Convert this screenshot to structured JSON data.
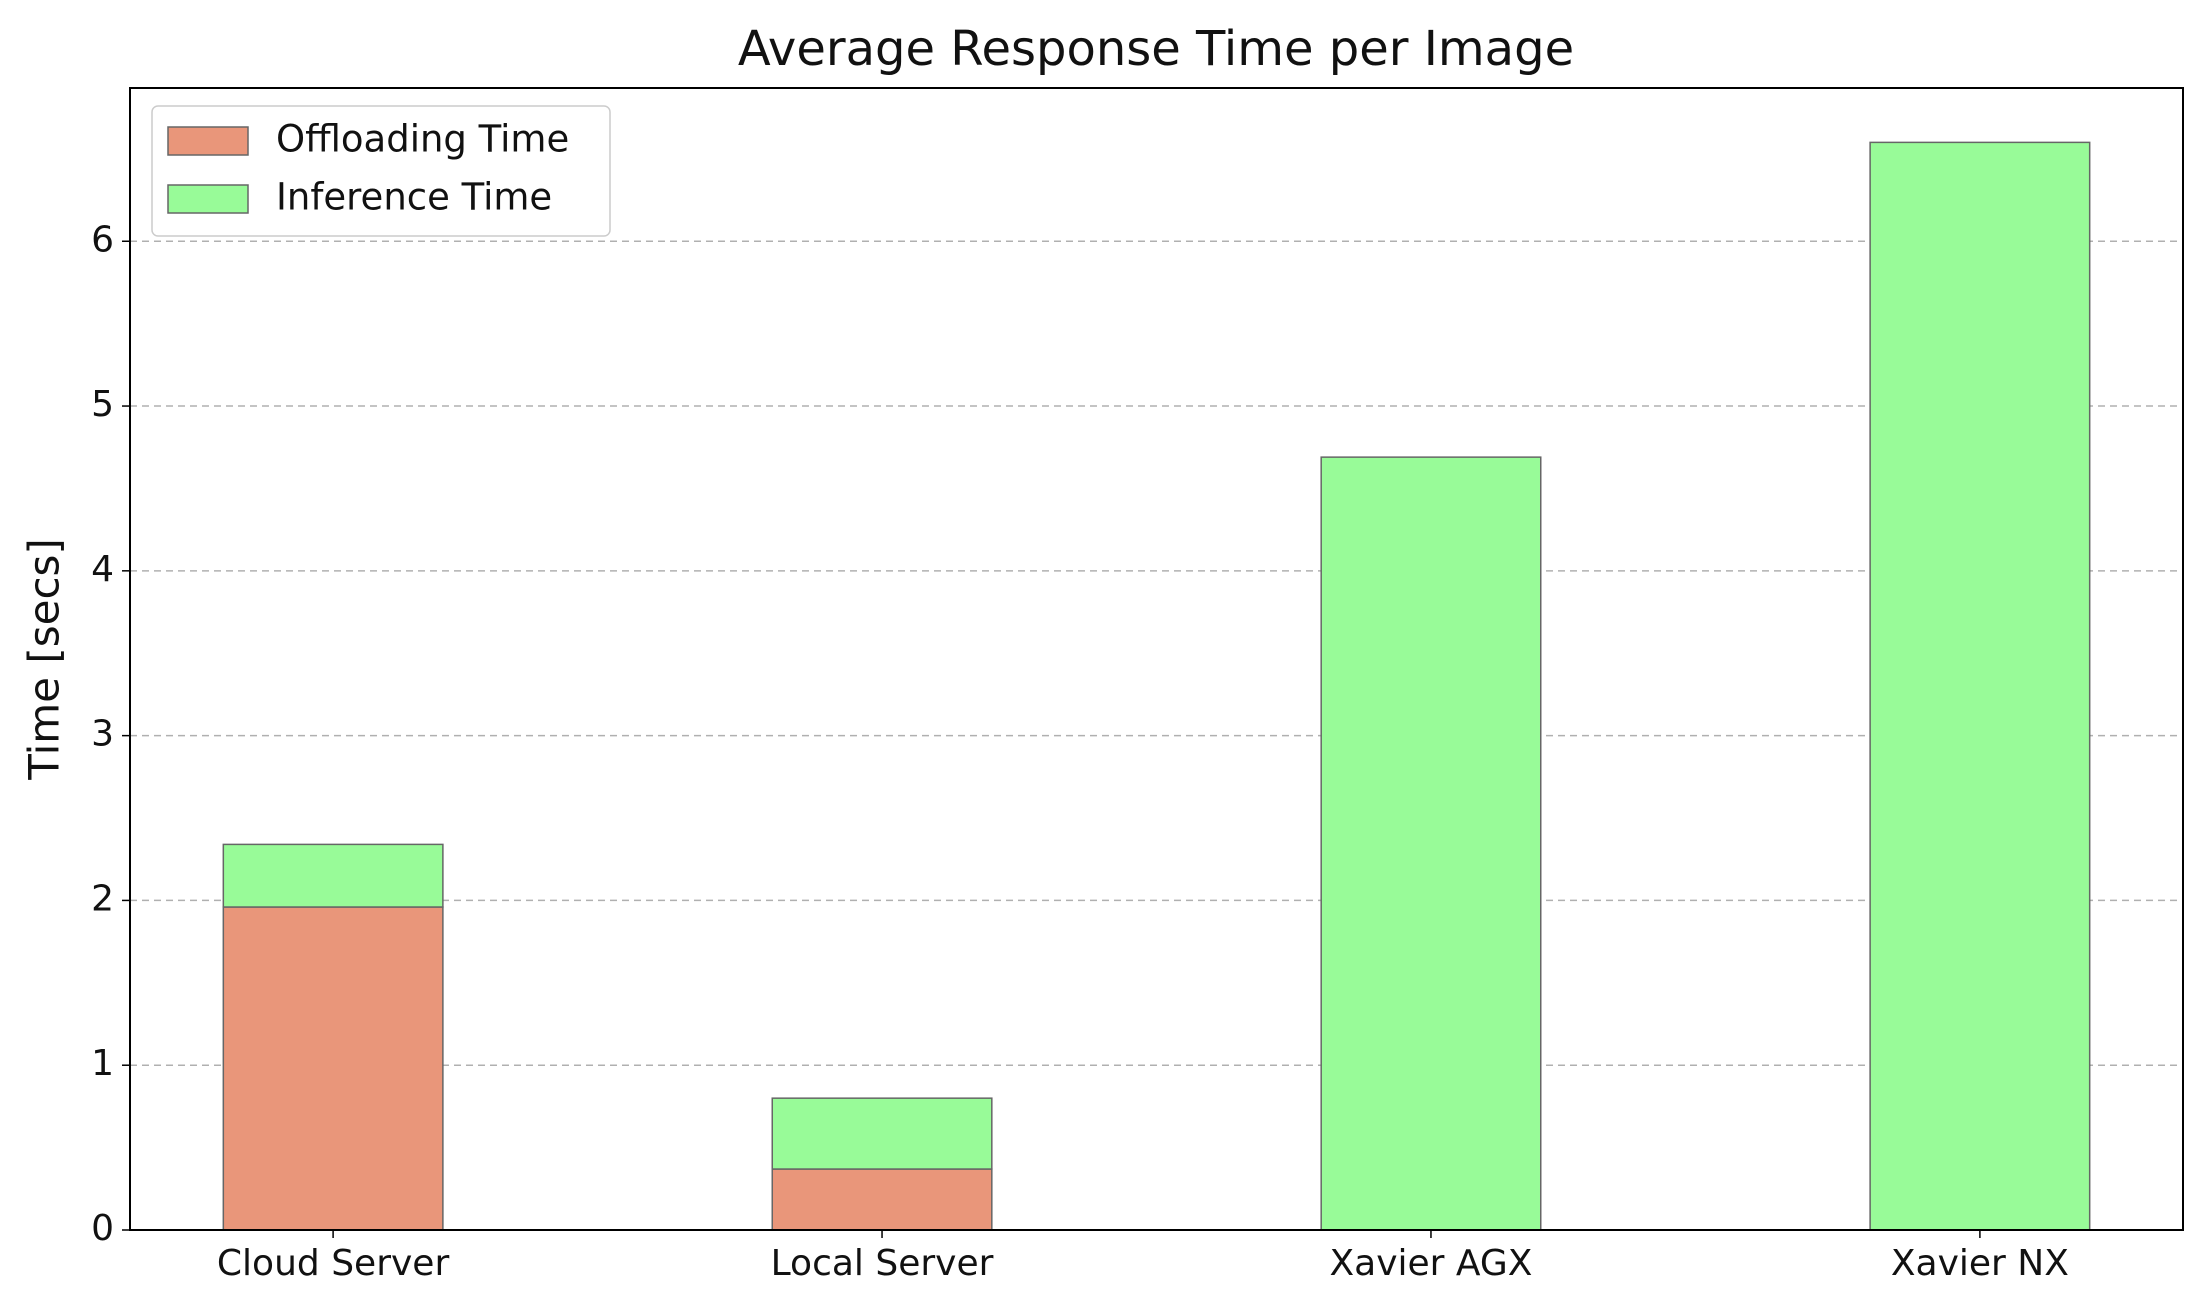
{
  "chart_data": {
    "type": "stacked_bar",
    "title": "Average Response Time per Image",
    "y_label": "Time [secs]",
    "categories": [
      "Cloud Server",
      "Local Server",
      "Xavier AGX",
      "Xavier NX"
    ],
    "series": [
      {
        "name": "Offloading Time",
        "color": "#e9967a",
        "values": [
          1.96,
          0.37,
          0,
          0
        ]
      },
      {
        "name": "Inference Time",
        "color": "#98fb98",
        "values": [
          0.38,
          0.43,
          4.69,
          6.6
        ]
      }
    ],
    "ylim": [
      0,
      6.93
    ],
    "yticks": [
      0,
      1,
      2,
      3,
      4,
      5,
      6
    ],
    "grid": true,
    "legend": "upper-left"
  }
}
